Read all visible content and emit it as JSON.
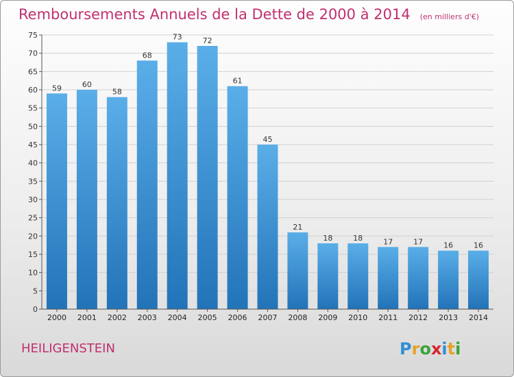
{
  "title": "Remboursements Annuels de la Dette de 2000 à 2014",
  "unit_note": "(en milliers d'€)",
  "commune": "HEILIGENSTEIN",
  "brand": {
    "letters": [
      "P",
      "r",
      "o",
      "x",
      "i",
      "t",
      "i"
    ],
    "colors": [
      "#2f8fd5",
      "#e7a12a",
      "#3aa43a",
      "#d8262f",
      "#2f8fd5",
      "#e7a12a",
      "#3aa43a"
    ]
  },
  "colors": {
    "bar_top": "#5aaee8",
    "bar_bottom": "#2273b8",
    "accent": "#c0306e"
  },
  "chart_data": {
    "type": "bar",
    "categories": [
      "2000",
      "2001",
      "2002",
      "2003",
      "2004",
      "2005",
      "2006",
      "2007",
      "2008",
      "2009",
      "2010",
      "2011",
      "2012",
      "2013",
      "2014"
    ],
    "values": [
      59,
      60,
      58,
      68,
      73,
      72,
      61,
      45,
      21,
      18,
      18,
      17,
      17,
      16,
      16
    ],
    "ylim": [
      0,
      75
    ],
    "yticks": [
      0,
      5,
      10,
      15,
      20,
      25,
      30,
      35,
      40,
      45,
      50,
      55,
      60,
      65,
      70,
      75
    ],
    "grid": true,
    "legend": "none"
  }
}
